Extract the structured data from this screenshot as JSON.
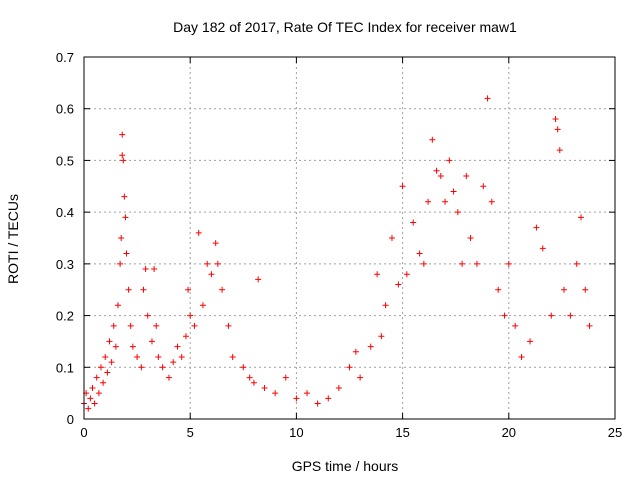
{
  "chart_data": {
    "type": "scatter",
    "title": "Day 182 of 2017, Rate Of TEC Index for receiver maw1",
    "xlabel": "GPS time / hours",
    "ylabel": "ROTI / TECUs",
    "xlim": [
      0,
      25
    ],
    "ylim": [
      0,
      0.7
    ],
    "xticks": [
      0,
      5,
      10,
      15,
      20,
      25
    ],
    "yticks": [
      0,
      0.1,
      0.2,
      0.3,
      0.4,
      0.5,
      0.6,
      0.7
    ],
    "xtick_labels": [
      "0",
      "5",
      "10",
      "15",
      "20",
      "25"
    ],
    "ytick_labels": [
      "0",
      "0.1",
      "0.2",
      "0.3",
      "0.4",
      "0.5",
      "0.6",
      "0.7"
    ],
    "grid": true,
    "legend": "none",
    "marker": "plus",
    "color": "#ff0000",
    "series": [
      {
        "points": [
          [
            0.0,
            0.03
          ],
          [
            0.1,
            0.05
          ],
          [
            0.2,
            0.02
          ],
          [
            0.3,
            0.04
          ],
          [
            0.4,
            0.06
          ],
          [
            0.5,
            0.03
          ],
          [
            0.6,
            0.08
          ],
          [
            0.7,
            0.05
          ],
          [
            0.8,
            0.1
          ],
          [
            0.9,
            0.07
          ],
          [
            1.0,
            0.12
          ],
          [
            1.1,
            0.09
          ],
          [
            1.2,
            0.15
          ],
          [
            1.3,
            0.11
          ],
          [
            1.4,
            0.18
          ],
          [
            1.5,
            0.14
          ],
          [
            1.6,
            0.22
          ],
          [
            1.7,
            0.3
          ],
          [
            1.75,
            0.35
          ],
          [
            1.8,
            0.51
          ],
          [
            1.8,
            0.55
          ],
          [
            1.85,
            0.5
          ],
          [
            1.9,
            0.43
          ],
          [
            1.95,
            0.39
          ],
          [
            2.0,
            0.32
          ],
          [
            2.1,
            0.25
          ],
          [
            2.2,
            0.18
          ],
          [
            2.3,
            0.14
          ],
          [
            2.5,
            0.12
          ],
          [
            2.7,
            0.1
          ],
          [
            2.8,
            0.25
          ],
          [
            2.9,
            0.29
          ],
          [
            3.0,
            0.2
          ],
          [
            3.2,
            0.15
          ],
          [
            3.3,
            0.29
          ],
          [
            3.4,
            0.18
          ],
          [
            3.5,
            0.12
          ],
          [
            3.7,
            0.1
          ],
          [
            4.0,
            0.08
          ],
          [
            4.2,
            0.11
          ],
          [
            4.4,
            0.14
          ],
          [
            4.6,
            0.12
          ],
          [
            4.8,
            0.16
          ],
          [
            4.9,
            0.25
          ],
          [
            5.0,
            0.2
          ],
          [
            5.2,
            0.18
          ],
          [
            5.4,
            0.36
          ],
          [
            5.6,
            0.22
          ],
          [
            5.8,
            0.3
          ],
          [
            6.0,
            0.28
          ],
          [
            6.2,
            0.34
          ],
          [
            6.3,
            0.3
          ],
          [
            6.5,
            0.25
          ],
          [
            6.8,
            0.18
          ],
          [
            7.0,
            0.12
          ],
          [
            7.5,
            0.1
          ],
          [
            7.8,
            0.08
          ],
          [
            8.0,
            0.07
          ],
          [
            8.2,
            0.27
          ],
          [
            8.5,
            0.06
          ],
          [
            9.0,
            0.05
          ],
          [
            9.5,
            0.08
          ],
          [
            10.0,
            0.04
          ],
          [
            10.5,
            0.05
          ],
          [
            11.0,
            0.03
          ],
          [
            11.5,
            0.04
          ],
          [
            12.0,
            0.06
          ],
          [
            12.5,
            0.1
          ],
          [
            12.8,
            0.13
          ],
          [
            13.0,
            0.08
          ],
          [
            13.5,
            0.14
          ],
          [
            13.8,
            0.28
          ],
          [
            14.0,
            0.16
          ],
          [
            14.2,
            0.22
          ],
          [
            14.5,
            0.35
          ],
          [
            14.8,
            0.26
          ],
          [
            15.0,
            0.45
          ],
          [
            15.2,
            0.28
          ],
          [
            15.5,
            0.38
          ],
          [
            15.8,
            0.32
          ],
          [
            16.0,
            0.3
          ],
          [
            16.2,
            0.42
          ],
          [
            16.4,
            0.54
          ],
          [
            16.6,
            0.48
          ],
          [
            16.8,
            0.47
          ],
          [
            17.0,
            0.42
          ],
          [
            17.2,
            0.5
          ],
          [
            17.4,
            0.44
          ],
          [
            17.6,
            0.4
          ],
          [
            17.8,
            0.3
          ],
          [
            18.0,
            0.47
          ],
          [
            18.2,
            0.35
          ],
          [
            18.5,
            0.3
          ],
          [
            18.8,
            0.45
          ],
          [
            19.0,
            0.62
          ],
          [
            19.2,
            0.42
          ],
          [
            19.5,
            0.25
          ],
          [
            19.8,
            0.2
          ],
          [
            20.0,
            0.3
          ],
          [
            20.3,
            0.18
          ],
          [
            20.6,
            0.12
          ],
          [
            21.0,
            0.15
          ],
          [
            21.3,
            0.37
          ],
          [
            21.6,
            0.33
          ],
          [
            22.0,
            0.2
          ],
          [
            22.2,
            0.58
          ],
          [
            22.3,
            0.56
          ],
          [
            22.4,
            0.52
          ],
          [
            22.6,
            0.25
          ],
          [
            22.9,
            0.2
          ],
          [
            23.2,
            0.3
          ],
          [
            23.4,
            0.39
          ],
          [
            23.6,
            0.25
          ],
          [
            23.8,
            0.18
          ]
        ]
      }
    ]
  }
}
